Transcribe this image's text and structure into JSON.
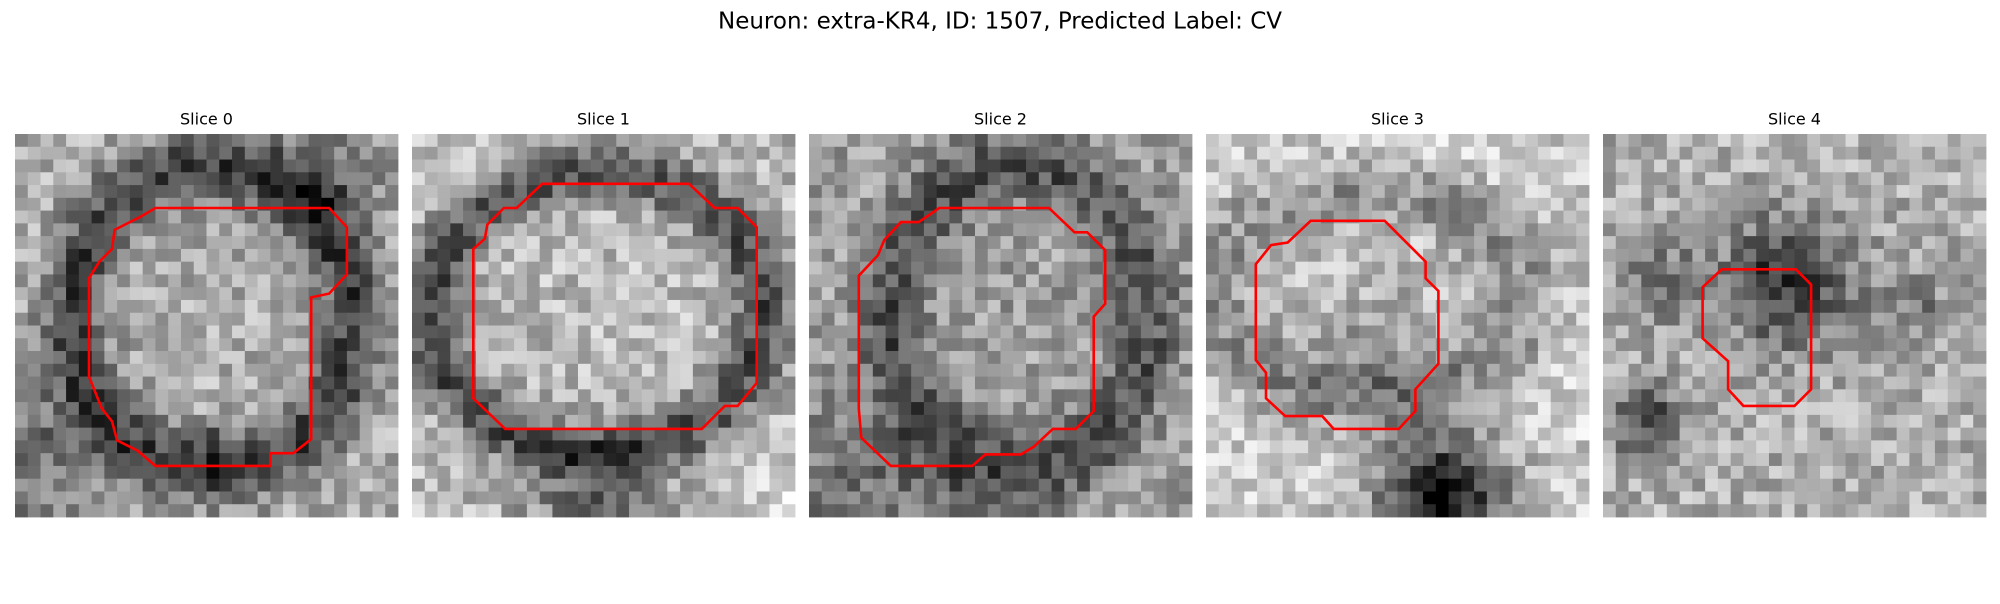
{
  "title": "Neuron: extra-KR4, ID: 1507, Predicted Label: CV",
  "panels": [
    {
      "title": "Slice 0"
    },
    {
      "title": "Slice 1"
    },
    {
      "title": "Slice 2"
    },
    {
      "title": "Slice 3"
    },
    {
      "title": "Slice 4"
    }
  ]
}
